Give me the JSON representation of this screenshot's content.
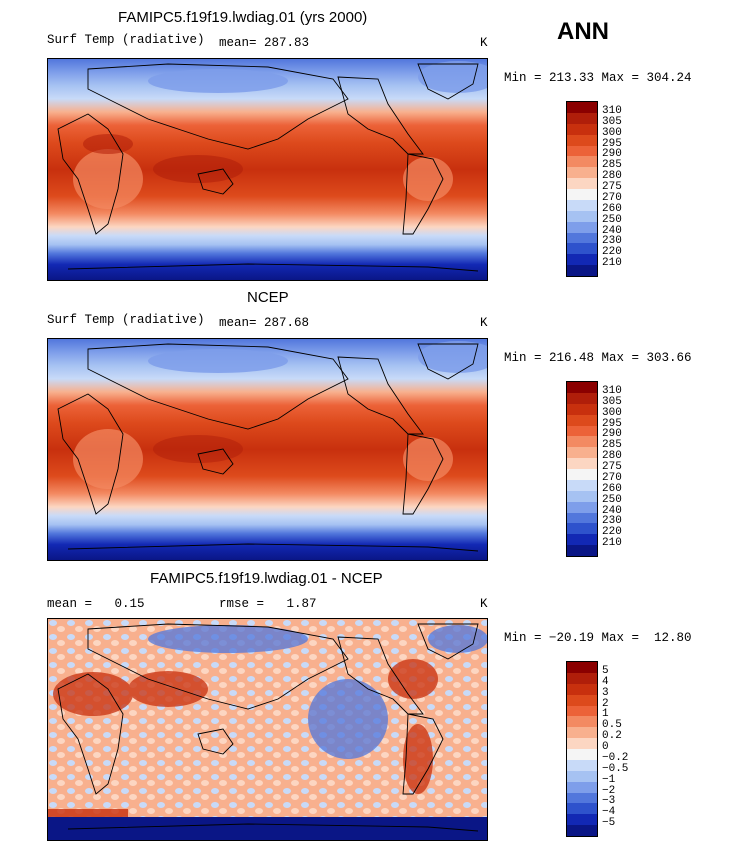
{
  "season": "ANN",
  "panels": [
    {
      "title": "FAMIPC5.f19f19.lwdiag.01 (yrs 2000)",
      "subtitle_left": "Surf Temp (radiative)",
      "subtitle_mid": "mean= 287.83",
      "units": "K",
      "minmax": "Min = 213.33 Max = 304.24"
    },
    {
      "title": "NCEP",
      "subtitle_left": "Surf Temp (radiative)",
      "subtitle_mid": "mean= 287.68",
      "units": "K",
      "minmax": "Min = 216.48 Max = 303.66"
    },
    {
      "title": "FAMIPC5.f19f19.lwdiag.01 - NCEP",
      "subtitle_left": "mean =   0.15",
      "subtitle_mid": "rmse =   1.87",
      "units": "K",
      "minmax": "Min = −20.19 Max =  12.80"
    }
  ],
  "colorbars": {
    "abs_labels": [
      "310",
      "305",
      "300",
      "295",
      "290",
      "285",
      "280",
      "275",
      "270",
      "260",
      "250",
      "240",
      "230",
      "220",
      "210"
    ],
    "abs_colors": [
      "#8B0000",
      "#B01E0A",
      "#C8300E",
      "#DD4A1C",
      "#EC6238",
      "#F38A62",
      "#F8B08E",
      "#FCD6C2",
      "#F5F5F5",
      "#C8DAF8",
      "#A6C2F2",
      "#7E9EEA",
      "#5277DC",
      "#2E52CC",
      "#1228B4",
      "#0A1686"
    ],
    "diff_labels": [
      "5",
      "4",
      "3",
      "2",
      "1",
      "0.5",
      "0.2",
      "0",
      "−0.2",
      "−0.5",
      "−1",
      "−2",
      "−3",
      "−4",
      "−5"
    ],
    "diff_colors": [
      "#8B0000",
      "#B01E0A",
      "#C8300E",
      "#DD4A1C",
      "#EC6238",
      "#F38A62",
      "#F8B08E",
      "#FCD6C2",
      "#F5F5F5",
      "#C8DAF8",
      "#A6C2F2",
      "#7E9EEA",
      "#5277DC",
      "#2E52CC",
      "#1228B4",
      "#0A1686"
    ]
  },
  "chart_data": [
    {
      "type": "heatmap",
      "title": "FAMIPC5.f19f19.lwdiag.01 (yrs 2000)",
      "variable": "Surf Temp (radiative)",
      "units": "K",
      "mean": 287.83,
      "min": 213.33,
      "max": 304.24,
      "contour_levels": [
        210,
        220,
        230,
        240,
        250,
        260,
        270,
        275,
        280,
        285,
        290,
        295,
        300,
        305,
        310
      ],
      "projection": "cylindrical equidistant, Pacific-centered"
    },
    {
      "type": "heatmap",
      "title": "NCEP",
      "variable": "Surf Temp (radiative)",
      "units": "K",
      "mean": 287.68,
      "min": 216.48,
      "max": 303.66,
      "contour_levels": [
        210,
        220,
        230,
        240,
        250,
        260,
        270,
        275,
        280,
        285,
        290,
        295,
        300,
        305,
        310
      ],
      "projection": "cylindrical equidistant, Pacific-centered"
    },
    {
      "type": "heatmap",
      "title": "FAMIPC5.f19f19.lwdiag.01 - NCEP",
      "units": "K",
      "mean": 0.15,
      "rmse": 1.87,
      "min": -20.19,
      "max": 12.8,
      "contour_levels": [
        -5,
        -4,
        -3,
        -2,
        -1,
        -0.5,
        -0.2,
        0,
        0.2,
        0.5,
        1,
        2,
        3,
        4,
        5
      ],
      "projection": "cylindrical equidistant, Pacific-centered"
    }
  ]
}
